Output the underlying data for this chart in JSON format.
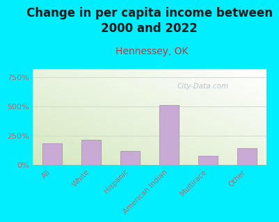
{
  "title": "Change in per capita income between\n2000 and 2022",
  "subtitle": "Hennessey, OK",
  "categories": [
    "All",
    "White",
    "Hispanic",
    "American Indian",
    "Multirace",
    "Other"
  ],
  "values": [
    185,
    210,
    120,
    510,
    75,
    140
  ],
  "bar_color": "#c8aad5",
  "bar_edge_color": "#b898c8",
  "background_outer": "#00eeff",
  "yticks": [
    0,
    250,
    500,
    750
  ],
  "ytick_labels": [
    "0%",
    "250%",
    "500%",
    "750%"
  ],
  "ylim": [
    0,
    820
  ],
  "title_fontsize": 12,
  "title_color": "#1a1a1a",
  "subtitle_fontsize": 10,
  "subtitle_color": "#cc3333",
  "tick_color": "#b07070",
  "watermark": "City-Data.com",
  "watermark_color": "#aabbcc",
  "grid_color": "#ccddcc"
}
